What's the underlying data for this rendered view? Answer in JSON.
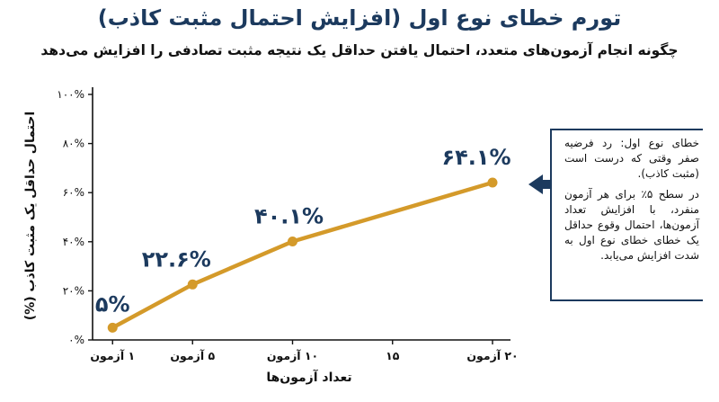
{
  "title": "تورم خطای نوع اول (افزایش احتمال مثبت کاذب)",
  "subtitle": "چگونه انجام آزمون‌های متعدد، احتمال یافتن حداقل یک نتیجه مثبت تصادفی را افزایش می‌دهد",
  "note": {
    "p1": "خطای نوع اول: رد فرضیه صفر وقتی که درست است (مثبت کاذب).",
    "p2": "در سطح ۵٪ برای هر آزمون منفرد، با افزایش تعداد آزمون‌ها، احتمال وقوع حداقل یک خطای خطای نوع اول به شدت افزایش می‌یابد."
  },
  "colors": {
    "line": "#d49a2a",
    "label": "#1c3a5e",
    "axis": "#111111",
    "arrow": "#1c3a5e"
  },
  "chart_data": {
    "type": "line",
    "title": "",
    "xlabel": "تعداد آزمون‌ها",
    "ylabel": "احتمال حداقل یک مثبت کاذب (%)",
    "xlim": [
      0,
      20
    ],
    "ylim": [
      0,
      100
    ],
    "x_ticks": [
      {
        "value": 1,
        "label": "۱ آزمون"
      },
      {
        "value": 5,
        "label": "۵ آزمون"
      },
      {
        "value": 10,
        "label": "۱۰ آزمون"
      },
      {
        "value": 15,
        "label": "۱۵"
      },
      {
        "value": 20,
        "label": "۲۰ آزمون"
      }
    ],
    "y_ticks": [
      {
        "value": 0,
        "label": "۰%"
      },
      {
        "value": 20,
        "label": "۲۰%"
      },
      {
        "value": 40,
        "label": "۴۰%"
      },
      {
        "value": 60,
        "label": "۶۰%"
      },
      {
        "value": 80,
        "label": "۸۰%"
      },
      {
        "value": 100,
        "label": "۱۰۰%"
      }
    ],
    "series": [
      {
        "points": [
          {
            "x": 1,
            "y": 5,
            "label": "۵%"
          },
          {
            "x": 5,
            "y": 22.6,
            "label": "۲۲.۶%"
          },
          {
            "x": 10,
            "y": 40.1,
            "label": "۴۰.۱%"
          },
          {
            "x": 20,
            "y": 64.1,
            "label": "۶۴.۱%"
          }
        ]
      }
    ],
    "grid": false
  }
}
